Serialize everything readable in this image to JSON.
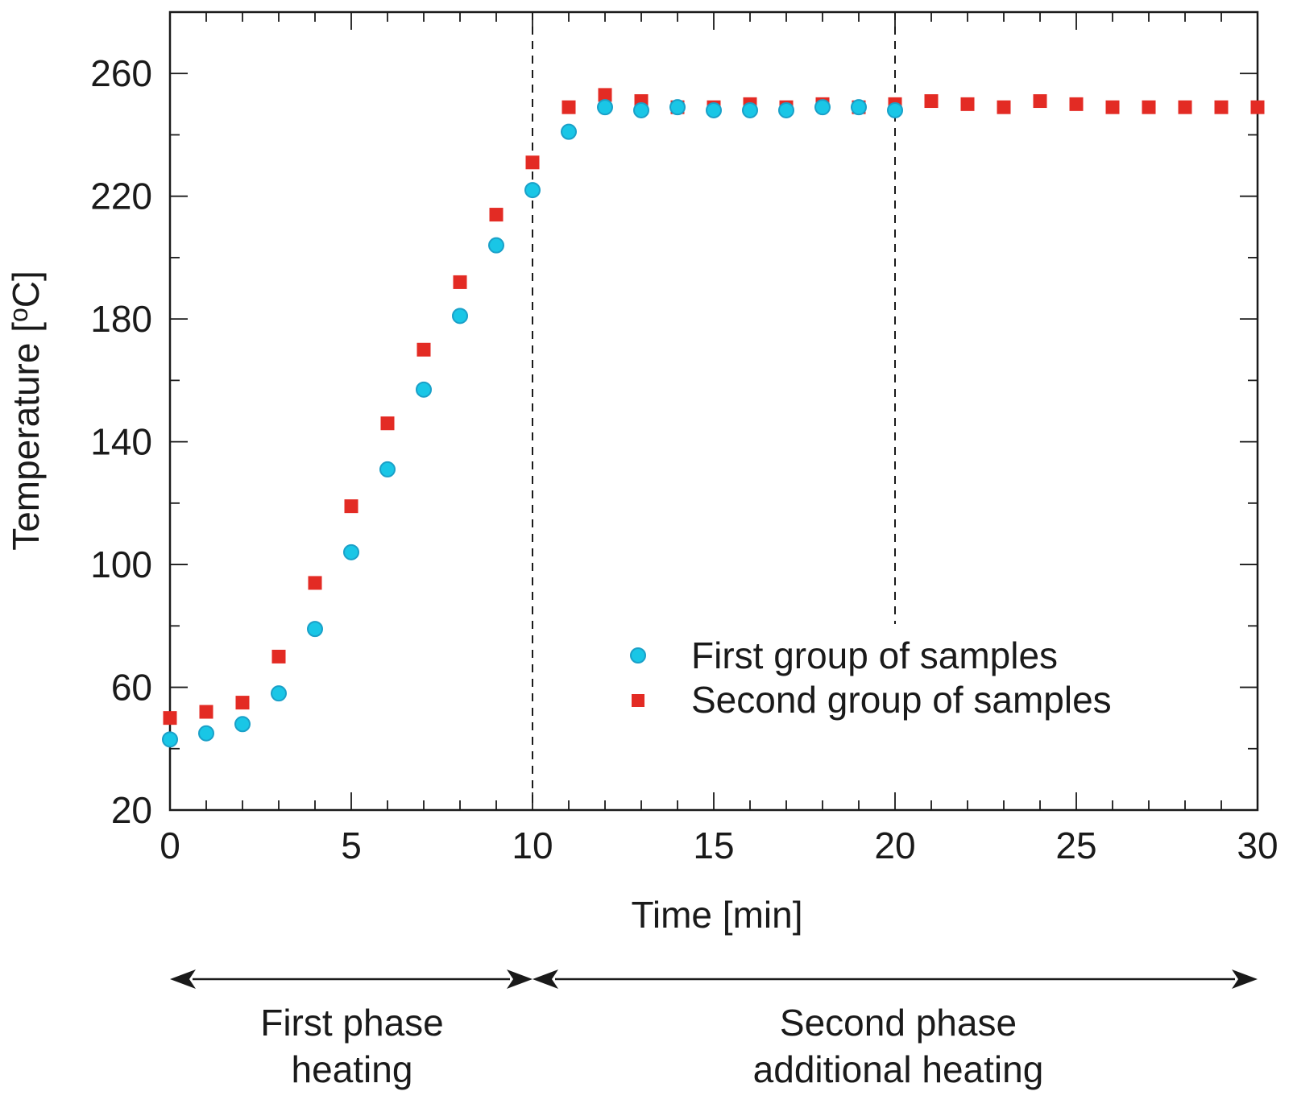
{
  "chart_data": {
    "type": "scatter",
    "title": "",
    "xlabel": "Time [min]",
    "ylabel": "Temperature [°C]",
    "ylabel_parts": {
      "prefix": "Temperature [",
      "superscript": "o",
      "suffix": "C]"
    },
    "xlim": [
      0,
      30
    ],
    "ylim": [
      20,
      280
    ],
    "x_ticks": [
      0,
      5,
      10,
      15,
      20,
      25,
      30
    ],
    "x_tick_labels": [
      "0",
      "5",
      "10",
      "15",
      "20",
      "25",
      "30"
    ],
    "y_ticks": [
      20,
      60,
      100,
      140,
      180,
      220,
      260
    ],
    "y_tick_labels": [
      "20",
      "60",
      "100",
      "140",
      "180",
      "220",
      "260"
    ],
    "x_minor_step": 1,
    "y_minor_step": 20,
    "grid": false,
    "vertical_markers": [
      10,
      20
    ],
    "series": [
      {
        "name": "First group of samples",
        "marker": "circle",
        "color": "#19c6e6",
        "edge_color": "#1aa0c8",
        "x": [
          0,
          1,
          2,
          3,
          4,
          5,
          6,
          7,
          8,
          9,
          10,
          11,
          12,
          13,
          14,
          15,
          16,
          17,
          18,
          19,
          20
        ],
        "y": [
          43,
          45,
          48,
          58,
          79,
          104,
          131,
          157,
          181,
          204,
          222,
          241,
          249,
          248,
          249,
          248,
          248,
          248,
          249,
          249,
          248
        ]
      },
      {
        "name": "Second group of samples",
        "marker": "square",
        "color": "#e32b24",
        "x": [
          0,
          1,
          2,
          3,
          4,
          5,
          6,
          7,
          8,
          9,
          10,
          11,
          12,
          13,
          14,
          15,
          16,
          17,
          18,
          19,
          20,
          21,
          22,
          23,
          24,
          25,
          26,
          27,
          28,
          29,
          30
        ],
        "y": [
          50,
          52,
          55,
          70,
          94,
          119,
          146,
          170,
          192,
          214,
          231,
          249,
          253,
          251,
          249,
          249,
          250,
          249,
          250,
          249,
          250,
          251,
          250,
          249,
          251,
          250,
          249,
          249,
          249,
          249,
          249
        ]
      }
    ],
    "legend": {
      "placement": "lower-right",
      "entries": [
        "First group of samples",
        "Second group of samples"
      ]
    },
    "phases": [
      {
        "label_line1": "First phase",
        "label_line2": "heating",
        "x_start": 0,
        "x_end": 10
      },
      {
        "label_line1": "Second phase",
        "label_line2": "additional heating",
        "x_start": 10,
        "x_end": 30
      }
    ]
  }
}
